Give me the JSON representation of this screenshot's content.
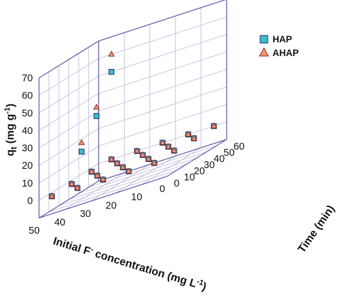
{
  "chart_data": {
    "type": "scatter",
    "projection": "3d",
    "axes": {
      "x": {
        "label_main": "Initial F",
        "label_sup_1": "-",
        "label_mid": " concentration (mg L",
        "label_sup_2": "-1",
        "label_end": ")",
        "range": [
          0,
          50
        ],
        "ticks": [
          "0",
          "10",
          "20",
          "30",
          "40",
          "50"
        ]
      },
      "y": {
        "label": "Time (min)",
        "range": [
          0,
          60
        ],
        "ticks": [
          "0",
          "10",
          "20",
          "30",
          "40",
          "50",
          "60"
        ]
      },
      "z": {
        "label_main": "q",
        "label_sub": "t",
        "label_mid": " (mg g",
        "label_sup": "-1",
        "label_end": ")",
        "range": [
          -10,
          70
        ],
        "ticks": [
          "0",
          "10",
          "20",
          "30",
          "40",
          "50",
          "60",
          "70"
        ]
      }
    },
    "grid": true,
    "legend_position": "top-right",
    "series": [
      {
        "name": "HAP",
        "marker": "square",
        "color": "#3bbfca",
        "edge_color": "#1a2a6b",
        "points": [
          {
            "x": 45,
            "y": 0,
            "z": 0
          },
          {
            "x": 35,
            "y": 0,
            "z": 0
          },
          {
            "x": 25,
            "y": 0,
            "z": 0
          },
          {
            "x": 15,
            "y": 0,
            "z": 0
          },
          {
            "x": 5,
            "y": 0,
            "z": 0
          },
          {
            "x": 45,
            "y": 20,
            "z": 0
          },
          {
            "x": 35,
            "y": 20,
            "z": 0
          },
          {
            "x": 25,
            "y": 20,
            "z": 0
          },
          {
            "x": 15,
            "y": 20,
            "z": 0
          },
          {
            "x": 5,
            "y": 20,
            "z": 0
          },
          {
            "x": 45,
            "y": 40,
            "z": 0
          },
          {
            "x": 35,
            "y": 40,
            "z": 0
          },
          {
            "x": 25,
            "y": 40,
            "z": 0
          },
          {
            "x": 15,
            "y": 40,
            "z": 0
          },
          {
            "x": 5,
            "y": 40,
            "z": 0
          },
          {
            "x": 45,
            "y": 60,
            "z": 0
          },
          {
            "x": 35,
            "y": 60,
            "z": 0
          },
          {
            "x": 25,
            "y": 60,
            "z": 0
          },
          {
            "x": 15,
            "y": 60,
            "z": 0
          },
          {
            "x": 5,
            "y": 60,
            "z": 0
          },
          {
            "x": 45,
            "y": 30,
            "z": 15
          },
          {
            "x": 45,
            "y": 45,
            "z": 30
          },
          {
            "x": 45,
            "y": 60,
            "z": 50
          }
        ]
      },
      {
        "name": "AHAP",
        "marker": "triangle",
        "color": "#f3957a",
        "edge_color": "#8b2b1c",
        "points": [
          {
            "x": 45,
            "y": 0,
            "z": 0
          },
          {
            "x": 35,
            "y": 0,
            "z": 0
          },
          {
            "x": 25,
            "y": 0,
            "z": 0
          },
          {
            "x": 15,
            "y": 0,
            "z": 0
          },
          {
            "x": 5,
            "y": 0,
            "z": 0
          },
          {
            "x": 45,
            "y": 20,
            "z": 0
          },
          {
            "x": 35,
            "y": 20,
            "z": 0
          },
          {
            "x": 25,
            "y": 20,
            "z": 0
          },
          {
            "x": 15,
            "y": 20,
            "z": 0
          },
          {
            "x": 5,
            "y": 20,
            "z": 0
          },
          {
            "x": 45,
            "y": 40,
            "z": 0
          },
          {
            "x": 35,
            "y": 40,
            "z": 0
          },
          {
            "x": 25,
            "y": 40,
            "z": 0
          },
          {
            "x": 15,
            "y": 40,
            "z": 0
          },
          {
            "x": 5,
            "y": 40,
            "z": 0
          },
          {
            "x": 45,
            "y": 60,
            "z": 0
          },
          {
            "x": 35,
            "y": 60,
            "z": 0
          },
          {
            "x": 25,
            "y": 60,
            "z": 0
          },
          {
            "x": 15,
            "y": 60,
            "z": 0
          },
          {
            "x": 5,
            "y": 60,
            "z": 0
          },
          {
            "x": 45,
            "y": 30,
            "z": 20
          },
          {
            "x": 45,
            "y": 45,
            "z": 35
          },
          {
            "x": 45,
            "y": 60,
            "z": 60
          }
        ]
      }
    ]
  },
  "legend": {
    "items": [
      {
        "label": "HAP",
        "marker": "square"
      },
      {
        "label": "AHAP",
        "marker": "triangle"
      }
    ]
  },
  "colors": {
    "frame": "#6a5fae",
    "grid": "#b9b6d8",
    "background": "#ffffff"
  }
}
